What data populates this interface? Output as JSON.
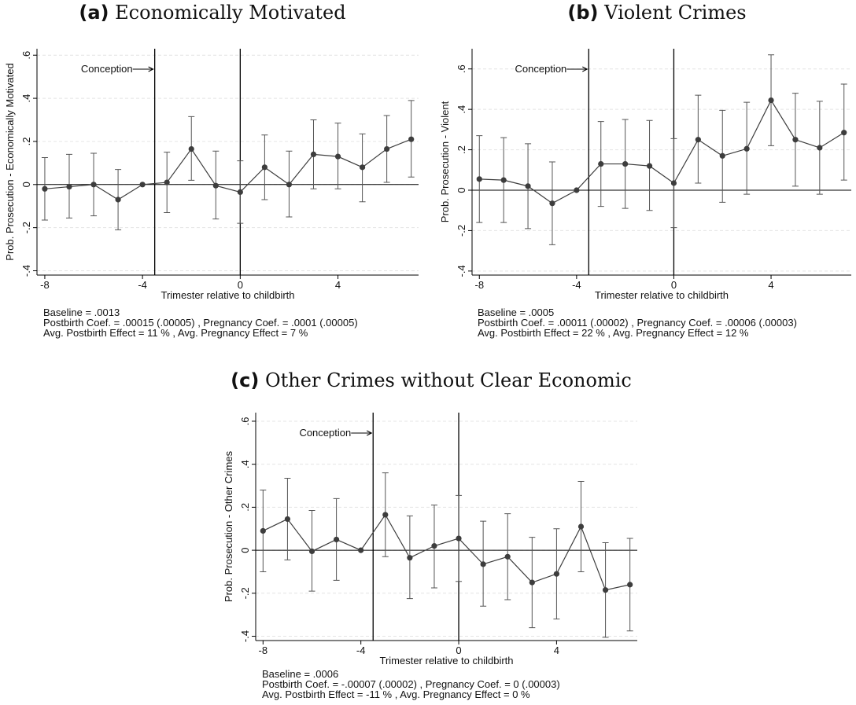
{
  "chart_data": [
    {
      "type": "line",
      "panel_label": "(a)",
      "title": "Economically Motivated",
      "x_label": "Trimester relative to childbirth",
      "y_label": "Prob. Prosecution - Economically Motivated",
      "x": [
        -8,
        -7,
        -6,
        -5,
        -4,
        -3,
        -2,
        -1,
        0,
        1,
        2,
        3,
        4,
        5,
        6,
        7
      ],
      "series": [
        {
          "color": "#3d3d3d",
          "values": [
            -0.02,
            -0.01,
            0,
            -0.07,
            0,
            0.01,
            0.165,
            -0.005,
            -0.035,
            0.08,
            0,
            0.14,
            0.13,
            0.08,
            0.165,
            0.21
          ],
          "lower": [
            -0.165,
            -0.155,
            -0.145,
            -0.21,
            null,
            -0.13,
            0.02,
            -0.16,
            -0.18,
            -0.07,
            -0.15,
            -0.02,
            -0.02,
            -0.08,
            0.01,
            0.035
          ],
          "upper": [
            0.125,
            0.14,
            0.145,
            0.07,
            null,
            0.15,
            0.315,
            0.155,
            0.11,
            0.23,
            0.155,
            0.3,
            0.285,
            0.235,
            0.32,
            0.39
          ]
        }
      ],
      "xlim": [
        -8.32,
        7.3
      ],
      "ylim": [
        -0.42,
        0.63
      ],
      "xticks": [
        -8,
        -4,
        0,
        4
      ],
      "yticks": [
        {
          "value": -0.4,
          "label": "-.4"
        },
        {
          "value": -0.2,
          "label": "-.2"
        },
        0,
        {
          "value": 0.2,
          "label": ".2"
        },
        {
          "value": 0.4,
          "label": ".4"
        },
        {
          "value": 0.6,
          "label": ".6"
        }
      ],
      "grid": true,
      "vlines": [
        -3.5,
        0
      ],
      "annotation": "Conception",
      "notes": [
        "Baseline = .0013",
        "Postbirth Coef. = .00015 (.00005) , Pregnancy Coef. = .0001 (.00005)",
        "Avg. Postbirth Effect = 11 % , Avg. Pregnancy Effect = 7 %"
      ]
    },
    {
      "type": "line",
      "panel_label": "(b)",
      "title": "Violent Crimes",
      "x_label": "Trimester relative to childbirth",
      "y_label": "Prob. Prosecution - Violent",
      "x": [
        -8,
        -7,
        -6,
        -5,
        -4,
        -3,
        -2,
        -1,
        0,
        1,
        2,
        3,
        4,
        5,
        6,
        7
      ],
      "series": [
        {
          "color": "#3d3d3d",
          "values": [
            0.055,
            0.05,
            0.02,
            -0.065,
            0,
            0.13,
            0.13,
            0.12,
            0.035,
            0.25,
            0.17,
            0.205,
            0.445,
            0.25,
            0.21,
            0.285
          ],
          "lower": [
            -0.16,
            -0.16,
            -0.19,
            -0.27,
            null,
            -0.08,
            -0.09,
            -0.1,
            -0.185,
            0.035,
            -0.06,
            -0.02,
            0.22,
            0.02,
            -0.02,
            0.05
          ],
          "upper": [
            0.27,
            0.26,
            0.23,
            0.14,
            null,
            0.34,
            0.35,
            0.345,
            0.255,
            0.47,
            0.395,
            0.435,
            0.67,
            0.48,
            0.44,
            0.525
          ]
        }
      ],
      "xlim": [
        -8.3,
        7.3
      ],
      "ylim": [
        -0.42,
        0.7
      ],
      "xticks": [
        -8,
        -4,
        0,
        4
      ],
      "yticks": [
        {
          "value": -0.4,
          "label": "-.4"
        },
        {
          "value": -0.2,
          "label": "-.2"
        },
        0,
        {
          "value": 0.2,
          "label": ".2"
        },
        {
          "value": 0.4,
          "label": ".4"
        },
        {
          "value": 0.6,
          "label": ".6"
        }
      ],
      "grid": true,
      "vlines": [
        -3.5,
        0
      ],
      "annotation": "Conception",
      "notes": [
        "Baseline = .0005",
        "Postbirth Coef. = .00011 (.00002) , Pregnancy Coef. = .00006 (.00003)",
        "Avg. Postbirth Effect = 22 % , Avg. Pregnancy Effect = 12 %"
      ]
    },
    {
      "type": "line",
      "panel_label": "(c)",
      "title": "Other Crimes without Clear Economic",
      "x_label": "Trimester relative to childbirth",
      "y_label": "Prob. Prosecution - Other Crimes",
      "x": [
        -8,
        -7,
        -6,
        -5,
        -4,
        -3,
        -2,
        -1,
        0,
        1,
        2,
        3,
        4,
        5,
        6,
        7
      ],
      "series": [
        {
          "color": "#3d3d3d",
          "values": [
            0.09,
            0.145,
            -0.005,
            0.05,
            0,
            0.165,
            -0.035,
            0.02,
            0.055,
            -0.065,
            -0.03,
            -0.15,
            -0.11,
            0.11,
            -0.185,
            -0.16
          ],
          "lower": [
            -0.1,
            -0.045,
            -0.19,
            -0.14,
            null,
            -0.03,
            -0.225,
            -0.175,
            -0.145,
            -0.26,
            -0.23,
            -0.36,
            -0.32,
            -0.1,
            -0.405,
            -0.375
          ],
          "upper": [
            0.28,
            0.335,
            0.185,
            0.24,
            null,
            0.36,
            0.16,
            0.21,
            0.255,
            0.135,
            0.17,
            0.06,
            0.1,
            0.32,
            0.035,
            0.055
          ]
        }
      ],
      "xlim": [
        -8.3,
        7.3
      ],
      "ylim": [
        -0.42,
        0.64
      ],
      "xticks": [
        -8,
        -4,
        0,
        4
      ],
      "yticks": [
        {
          "value": -0.4,
          "label": "-.4"
        },
        {
          "value": -0.2,
          "label": "-.2"
        },
        0,
        {
          "value": 0.2,
          "label": ".2"
        },
        {
          "value": 0.4,
          "label": ".4"
        },
        {
          "value": 0.6,
          "label": ".6"
        }
      ],
      "grid": true,
      "vlines": [
        -3.5,
        0
      ],
      "annotation": "Conception",
      "notes": [
        "Baseline = .0006",
        "Postbirth Coef. = -.00007 (.00002) , Pregnancy Coef. = 0 (.00003)",
        "Avg. Postbirth Effect = -11 % , Avg. Pregnancy Effect = 0 %"
      ]
    }
  ]
}
